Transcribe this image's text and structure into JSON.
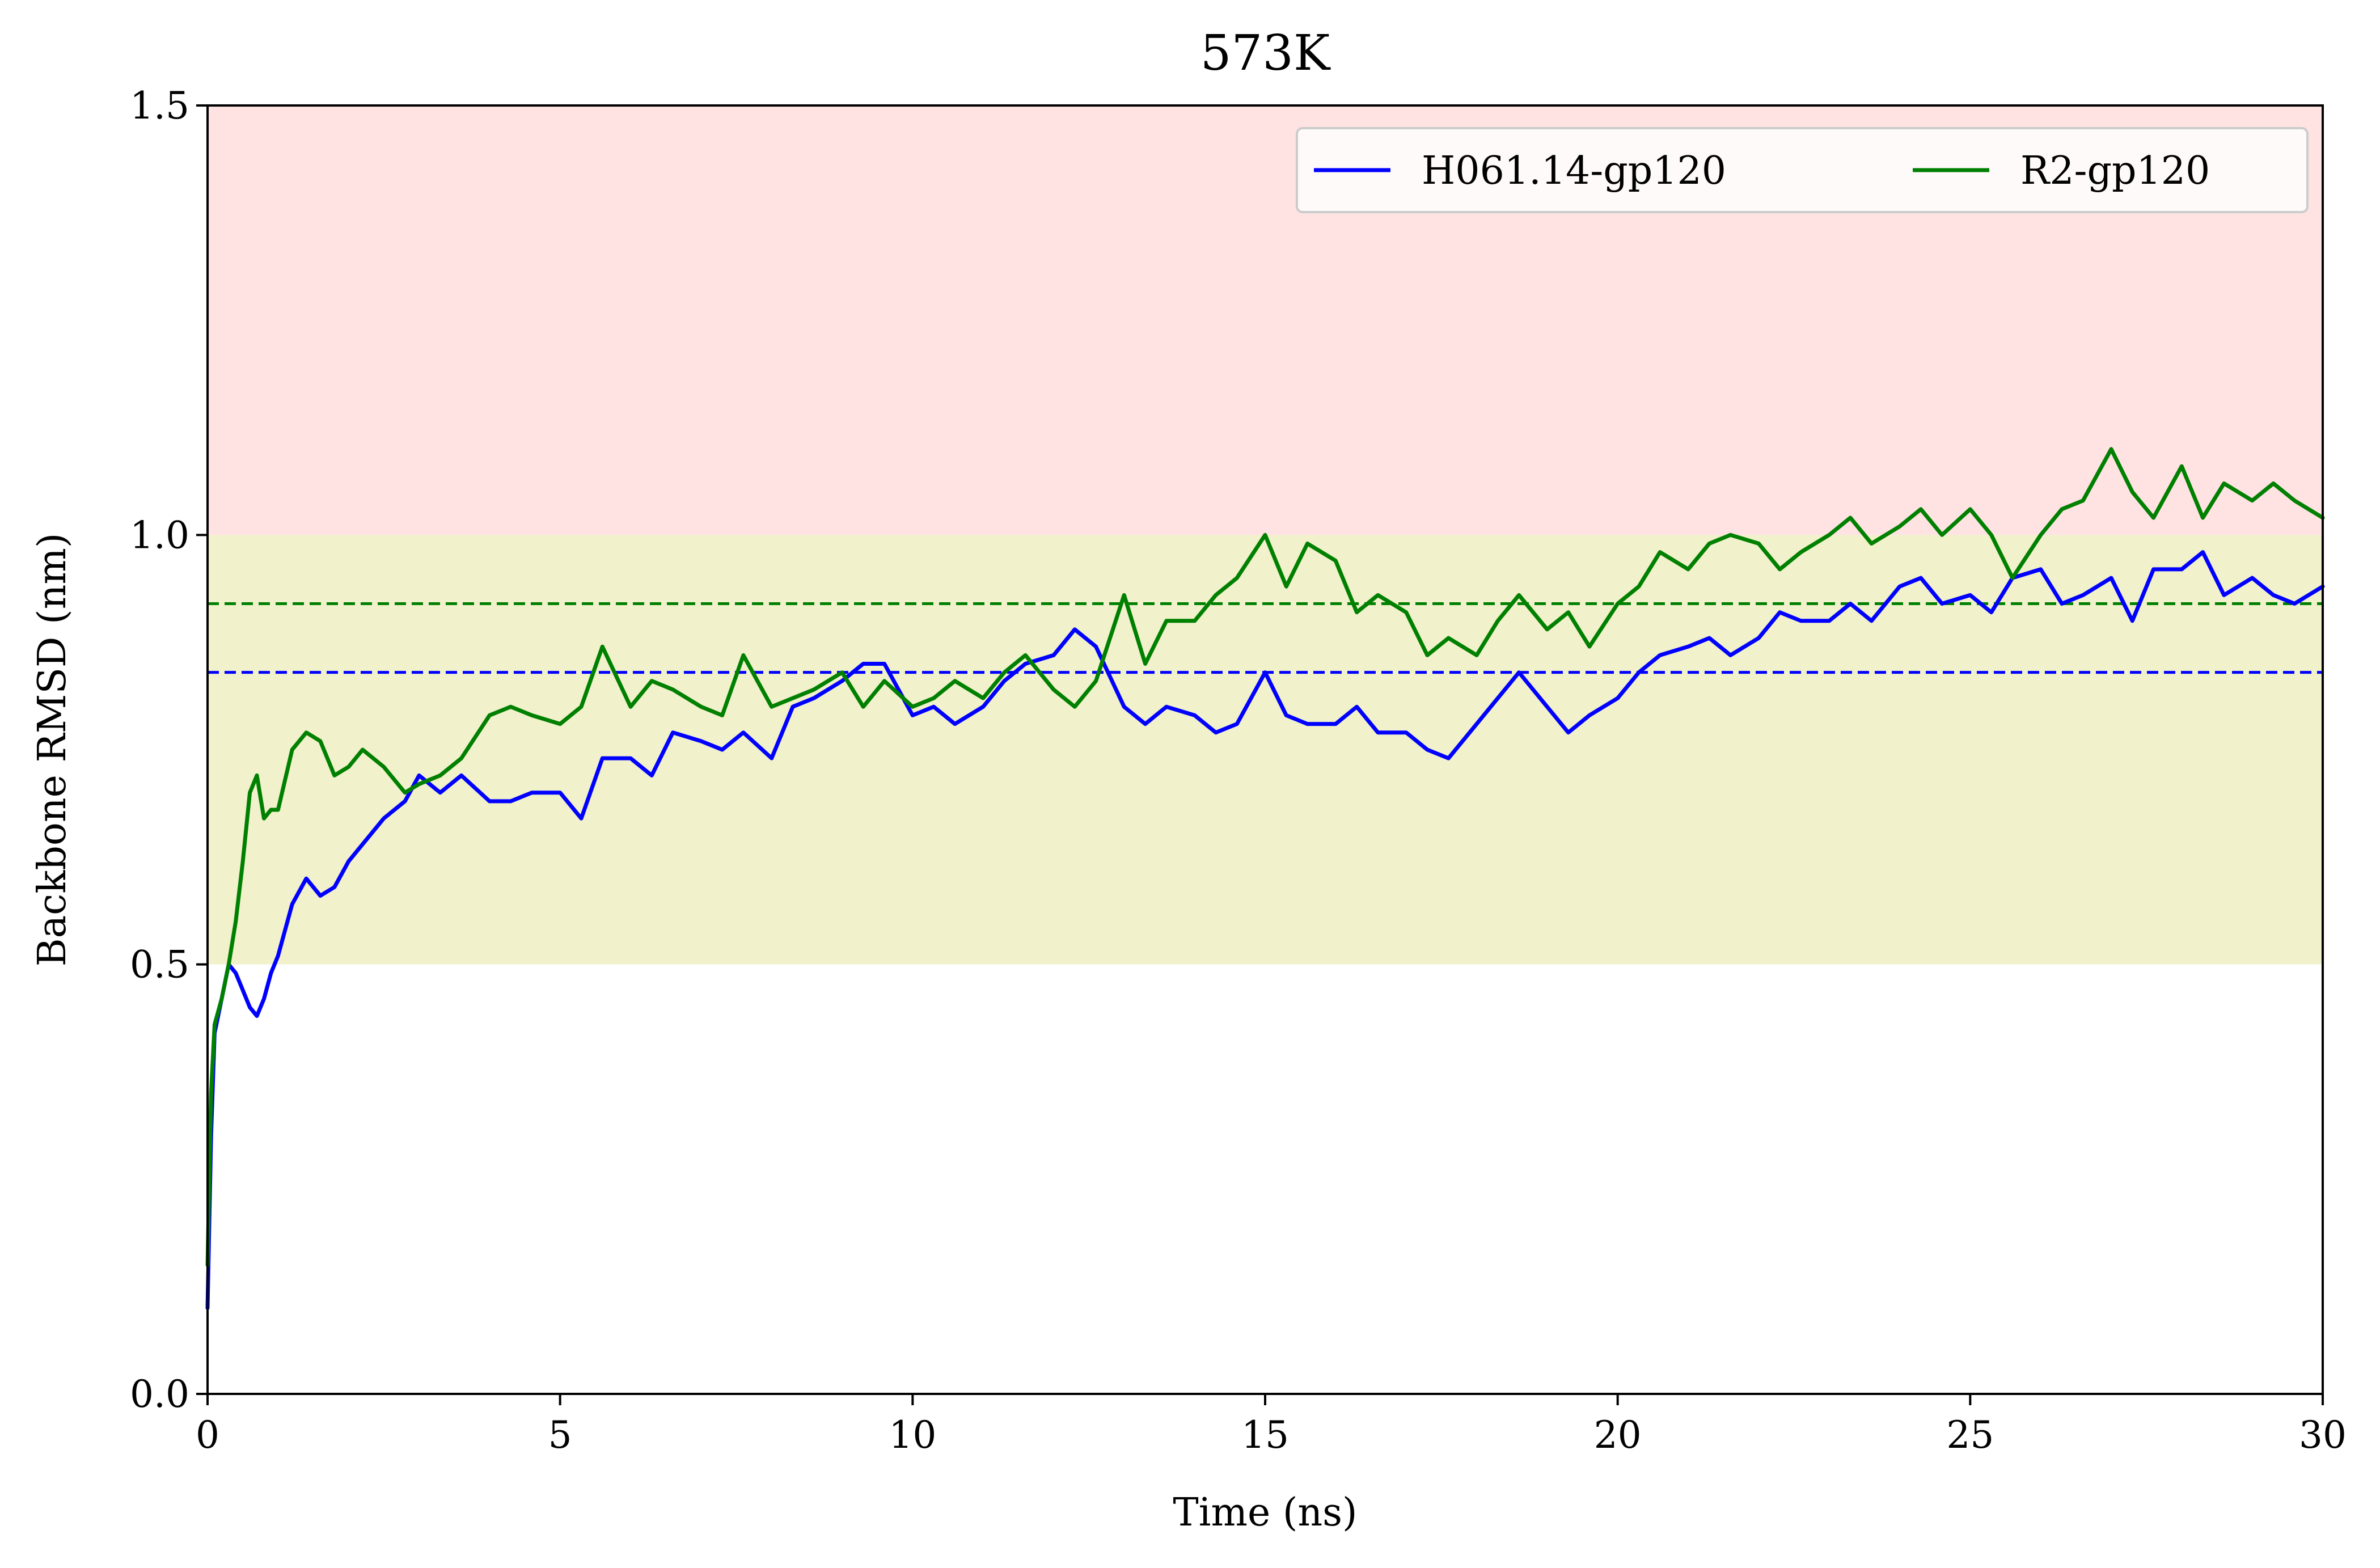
{
  "chart_data": {
    "type": "line",
    "title": "573K",
    "xlabel": "Time (ns)",
    "ylabel": "Backbone RMSD (nm)",
    "xlim": [
      0,
      30
    ],
    "ylim": [
      0.0,
      1.5
    ],
    "xticks": [
      0,
      5,
      10,
      15,
      20,
      25,
      30
    ],
    "xtick_labels": [
      "0",
      "5",
      "10",
      "15",
      "20",
      "25",
      "30"
    ],
    "yticks": [
      0.0,
      0.5,
      1.0,
      1.5
    ],
    "ytick_labels": [
      "0.0",
      "0.5",
      "1.0",
      "1.5"
    ],
    "grid": false,
    "legend_position": "upper-right",
    "legend_columns": 2,
    "bands": [
      {
        "y0": 0.5,
        "y1": 1.0,
        "color": "#f1f1cc"
      },
      {
        "y0": 1.0,
        "y1": 1.5,
        "color": "#ffe3e3"
      }
    ],
    "series": [
      {
        "name": "H061.14-gp120",
        "color": "#0000ff",
        "mean": 0.84,
        "x": [
          0,
          0.05,
          0.1,
          0.2,
          0.3,
          0.4,
          0.5,
          0.6,
          0.7,
          0.8,
          0.9,
          1.0,
          1.2,
          1.4,
          1.6,
          1.8,
          2.0,
          2.2,
          2.5,
          2.8,
          3.0,
          3.3,
          3.6,
          4.0,
          4.3,
          4.6,
          5.0,
          5.3,
          5.6,
          6.0,
          6.3,
          6.6,
          7.0,
          7.3,
          7.6,
          8.0,
          8.3,
          8.6,
          9.0,
          9.3,
          9.6,
          10.0,
          10.3,
          10.6,
          11.0,
          11.3,
          11.6,
          12.0,
          12.3,
          12.6,
          13.0,
          13.3,
          13.6,
          14.0,
          14.3,
          14.6,
          15.0,
          15.3,
          15.6,
          16.0,
          16.3,
          16.6,
          17.0,
          17.3,
          17.6,
          18.0,
          18.3,
          18.6,
          19.0,
          19.3,
          19.6,
          20.0,
          20.3,
          20.6,
          21.0,
          21.3,
          21.6,
          22.0,
          22.3,
          22.6,
          23.0,
          23.3,
          23.6,
          24.0,
          24.3,
          24.6,
          25.0,
          25.3,
          25.6,
          26.0,
          26.3,
          26.6,
          27.0,
          27.3,
          27.6,
          28.0,
          28.3,
          28.6,
          29.0,
          29.3,
          29.6,
          30.0
        ],
        "values": [
          0.1,
          0.3,
          0.42,
          0.46,
          0.5,
          0.49,
          0.47,
          0.45,
          0.44,
          0.46,
          0.49,
          0.51,
          0.57,
          0.6,
          0.58,
          0.59,
          0.62,
          0.64,
          0.67,
          0.69,
          0.72,
          0.7,
          0.72,
          0.69,
          0.69,
          0.7,
          0.7,
          0.67,
          0.74,
          0.74,
          0.72,
          0.77,
          0.76,
          0.75,
          0.77,
          0.74,
          0.8,
          0.81,
          0.83,
          0.85,
          0.85,
          0.79,
          0.8,
          0.78,
          0.8,
          0.83,
          0.85,
          0.86,
          0.89,
          0.87,
          0.8,
          0.78,
          0.8,
          0.79,
          0.77,
          0.78,
          0.84,
          0.79,
          0.78,
          0.78,
          0.8,
          0.77,
          0.77,
          0.75,
          0.74,
          0.78,
          0.81,
          0.84,
          0.8,
          0.77,
          0.79,
          0.81,
          0.84,
          0.86,
          0.87,
          0.88,
          0.86,
          0.88,
          0.91,
          0.9,
          0.9,
          0.92,
          0.9,
          0.94,
          0.95,
          0.92,
          0.93,
          0.91,
          0.95,
          0.96,
          0.92,
          0.93,
          0.95,
          0.9,
          0.96,
          0.96,
          0.98,
          0.93,
          0.95,
          0.93,
          0.92,
          0.94
        ]
      },
      {
        "name": "R2-gp120",
        "color": "#008000",
        "mean": 0.92,
        "x": [
          0,
          0.05,
          0.1,
          0.2,
          0.3,
          0.4,
          0.5,
          0.6,
          0.7,
          0.8,
          0.9,
          1.0,
          1.2,
          1.4,
          1.6,
          1.8,
          2.0,
          2.2,
          2.5,
          2.8,
          3.0,
          3.3,
          3.6,
          4.0,
          4.3,
          4.6,
          5.0,
          5.3,
          5.6,
          6.0,
          6.3,
          6.6,
          7.0,
          7.3,
          7.6,
          8.0,
          8.3,
          8.6,
          9.0,
          9.3,
          9.6,
          10.0,
          10.3,
          10.6,
          11.0,
          11.3,
          11.6,
          12.0,
          12.3,
          12.6,
          13.0,
          13.3,
          13.6,
          14.0,
          14.3,
          14.6,
          15.0,
          15.3,
          15.6,
          16.0,
          16.3,
          16.6,
          17.0,
          17.3,
          17.6,
          18.0,
          18.3,
          18.6,
          19.0,
          19.3,
          19.6,
          20.0,
          20.3,
          20.6,
          21.0,
          21.3,
          21.6,
          22.0,
          22.3,
          22.6,
          23.0,
          23.3,
          23.6,
          24.0,
          24.3,
          24.6,
          25.0,
          25.3,
          25.6,
          26.0,
          26.3,
          26.6,
          27.0,
          27.3,
          27.6,
          28.0,
          28.3,
          28.6,
          29.0,
          29.3,
          29.6,
          30.0
        ],
        "values": [
          0.15,
          0.35,
          0.43,
          0.46,
          0.5,
          0.55,
          0.62,
          0.7,
          0.72,
          0.67,
          0.68,
          0.68,
          0.75,
          0.77,
          0.76,
          0.72,
          0.73,
          0.75,
          0.73,
          0.7,
          0.71,
          0.72,
          0.74,
          0.79,
          0.8,
          0.79,
          0.78,
          0.8,
          0.87,
          0.8,
          0.83,
          0.82,
          0.8,
          0.79,
          0.86,
          0.8,
          0.81,
          0.82,
          0.84,
          0.8,
          0.83,
          0.8,
          0.81,
          0.83,
          0.81,
          0.84,
          0.86,
          0.82,
          0.8,
          0.83,
          0.93,
          0.85,
          0.9,
          0.9,
          0.93,
          0.95,
          1.0,
          0.94,
          0.99,
          0.97,
          0.91,
          0.93,
          0.91,
          0.86,
          0.88,
          0.86,
          0.9,
          0.93,
          0.89,
          0.91,
          0.87,
          0.92,
          0.94,
          0.98,
          0.96,
          0.99,
          1.0,
          0.99,
          0.96,
          0.98,
          1.0,
          1.02,
          0.99,
          1.01,
          1.03,
          1.0,
          1.03,
          1.0,
          0.95,
          1.0,
          1.03,
          1.04,
          1.1,
          1.05,
          1.02,
          1.08,
          1.02,
          1.06,
          1.04,
          1.06,
          1.04,
          1.02
        ]
      }
    ]
  }
}
